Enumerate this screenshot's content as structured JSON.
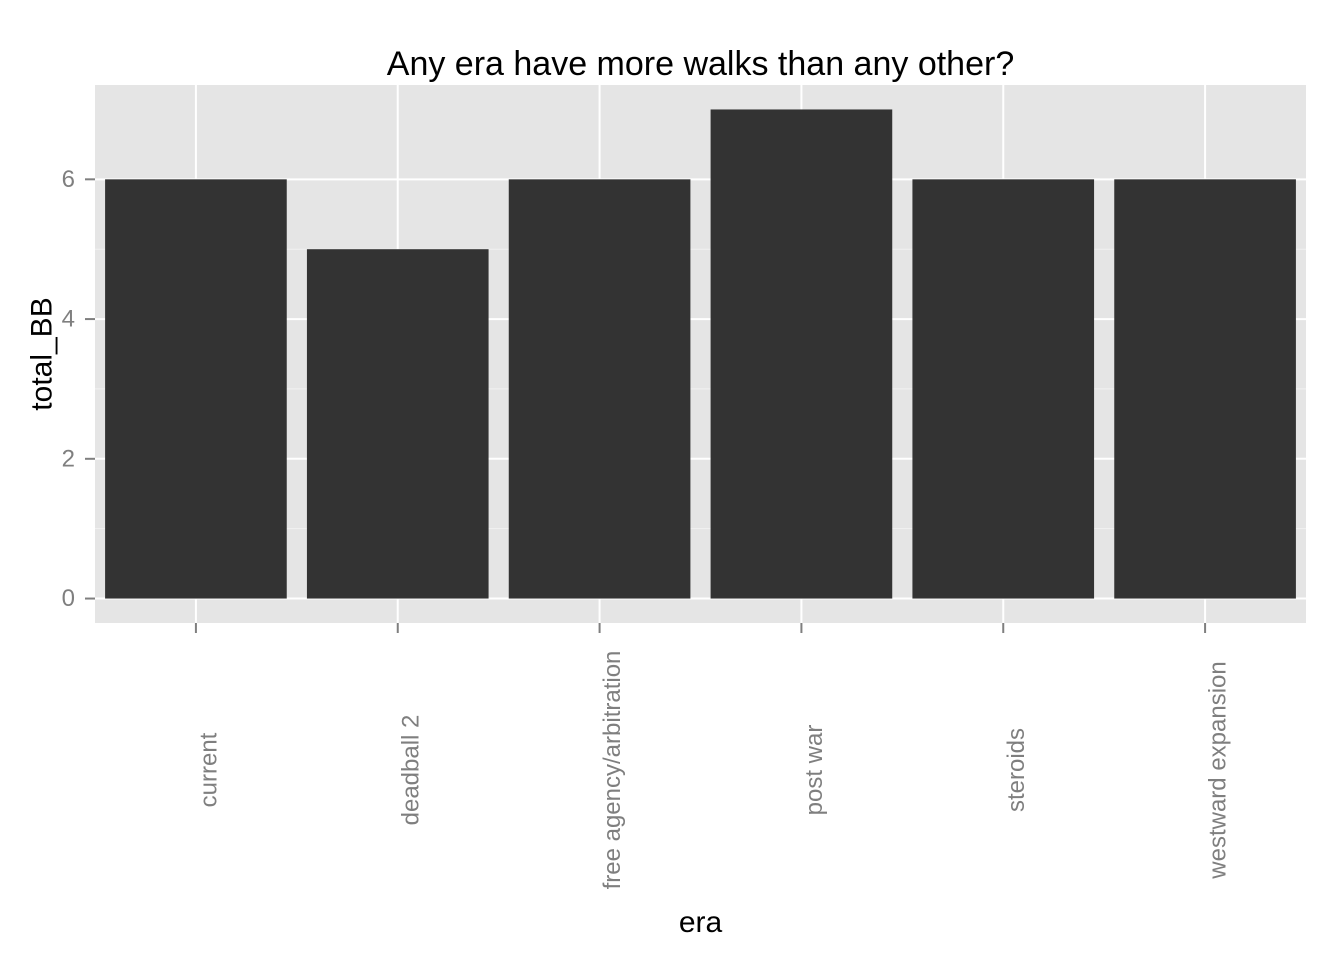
{
  "chart_data": {
    "type": "bar",
    "title": "Any era have more walks than any other?",
    "xlabel": "era",
    "ylabel": "total_BB",
    "categories": [
      "current",
      "deadball 2",
      "free agency/arbitration",
      "post war",
      "steroids",
      "westward expansion"
    ],
    "values": [
      6,
      5,
      6,
      7,
      6,
      6
    ],
    "ylim": [
      -0.35,
      7.35
    ],
    "yticks": [
      0,
      2,
      4,
      6
    ],
    "ytick_labels": [
      "0",
      "2",
      "4",
      "6"
    ],
    "grid": true,
    "legend": "none",
    "colors": {
      "bar": "#333333",
      "panel": "#e5e5e5",
      "grid_major": "#ffffff",
      "grid_minor": "#f2f2f2",
      "tick_label": "#7f7f7f",
      "tick_mark": "#7f7f7f"
    }
  }
}
